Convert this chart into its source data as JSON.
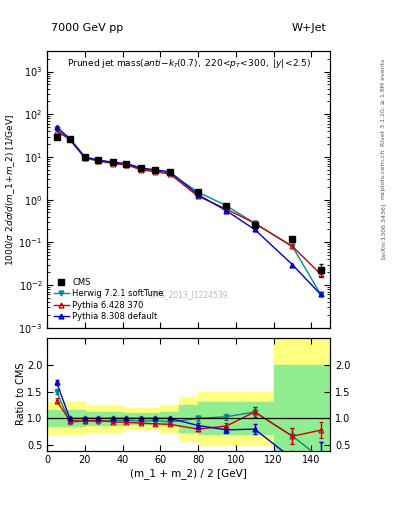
{
  "header_left": "7000 GeV pp",
  "header_right": "W+Jet",
  "ylabel_main": "1000/σ 2dσ/d(m_1 + m_2) [1/GeV]",
  "ylabel_ratio": "Ratio to CMS",
  "xlabel": "(m_1 + m_2) / 2 [GeV]",
  "watermark": "CMS_2013_I1224539",
  "rivet_text": "Rivet 3.1.10, ≥ 1.8M events",
  "arxiv_text": "[arXiv:1306.3436]",
  "mcplots_text": "mcplots.cern.ch",
  "x_cms": [
    5,
    12,
    20,
    27,
    35,
    42,
    50,
    57,
    65,
    80,
    95,
    110,
    130,
    145
  ],
  "y_cms": [
    30,
    27,
    10,
    8.5,
    7.5,
    7.0,
    5.5,
    5.0,
    4.5,
    1.5,
    0.7,
    0.25,
    0.12,
    0.023
  ],
  "y_cms_err": [
    3,
    2.5,
    1,
    0.8,
    0.7,
    0.6,
    0.5,
    0.45,
    0.4,
    0.15,
    0.07,
    0.03,
    0.015,
    0.008
  ],
  "x_herwig": [
    5,
    12,
    20,
    27,
    35,
    42,
    50,
    57,
    65,
    80,
    95,
    110,
    130,
    145
  ],
  "y_herwig": [
    45,
    25,
    9.5,
    8.0,
    7.2,
    6.8,
    5.2,
    4.8,
    4.2,
    1.5,
    0.72,
    0.28,
    0.08,
    0.006
  ],
  "x_py6": [
    5,
    12,
    20,
    27,
    35,
    42,
    50,
    57,
    65,
    80,
    95,
    110,
    130,
    145
  ],
  "y_py6": [
    40,
    26,
    9.5,
    8.2,
    7.0,
    6.5,
    5.0,
    4.5,
    4.0,
    1.2,
    0.6,
    0.28,
    0.08,
    0.018
  ],
  "x_py8": [
    5,
    12,
    20,
    27,
    35,
    42,
    50,
    57,
    65,
    80,
    95,
    110,
    130,
    145
  ],
  "y_py8": [
    50,
    27,
    10,
    8.5,
    7.5,
    7.0,
    5.5,
    5.0,
    4.5,
    1.3,
    0.55,
    0.2,
    0.03,
    0.006
  ],
  "ratio_herwig": [
    1.5,
    0.93,
    0.95,
    0.94,
    0.96,
    0.97,
    0.945,
    0.96,
    0.933,
    1.0,
    1.03,
    1.12,
    0.67,
    0.26
  ],
  "ratio_py6": [
    1.33,
    0.96,
    0.95,
    0.965,
    0.933,
    0.929,
    0.909,
    0.9,
    0.889,
    0.8,
    0.857,
    1.12,
    0.667,
    0.78
  ],
  "ratio_py8": [
    1.67,
    1.0,
    1.0,
    1.0,
    1.0,
    1.0,
    1.0,
    1.0,
    1.0,
    0.867,
    0.786,
    0.8,
    0.25,
    0.26
  ],
  "ratio_herwig_err": [
    0.05,
    0.03,
    0.03,
    0.03,
    0.02,
    0.02,
    0.02,
    0.02,
    0.02,
    0.04,
    0.06,
    0.1,
    0.15,
    0.3
  ],
  "ratio_py6_err": [
    0.05,
    0.03,
    0.03,
    0.02,
    0.02,
    0.02,
    0.02,
    0.02,
    0.02,
    0.04,
    0.06,
    0.1,
    0.15,
    0.15
  ],
  "ratio_py8_err": [
    0.05,
    0.03,
    0.03,
    0.02,
    0.02,
    0.02,
    0.02,
    0.02,
    0.02,
    0.04,
    0.06,
    0.1,
    0.15,
    0.3
  ],
  "band_x": [
    0,
    10,
    20,
    30,
    40,
    50,
    60,
    70,
    80,
    90,
    100,
    110,
    120,
    130,
    140,
    150
  ],
  "band_green_lo": [
    0.85,
    0.85,
    0.88,
    0.88,
    0.9,
    0.9,
    0.88,
    0.75,
    0.7,
    0.7,
    0.7,
    0.7,
    0.4,
    0.4,
    0.4,
    0.4
  ],
  "band_green_hi": [
    1.15,
    1.15,
    1.12,
    1.12,
    1.1,
    1.1,
    1.12,
    1.25,
    1.3,
    1.3,
    1.3,
    1.3,
    2.0,
    2.0,
    2.0,
    2.0
  ],
  "band_yellow_lo": [
    0.7,
    0.7,
    0.75,
    0.75,
    0.8,
    0.8,
    0.75,
    0.6,
    0.5,
    0.5,
    0.5,
    0.5,
    0.3,
    0.3,
    0.3,
    0.3
  ],
  "band_yellow_hi": [
    1.3,
    1.3,
    1.25,
    1.25,
    1.2,
    1.2,
    1.25,
    1.4,
    1.5,
    1.5,
    1.5,
    1.5,
    2.5,
    2.5,
    2.5,
    2.5
  ],
  "color_cms": "#000000",
  "color_herwig": "#008B8B",
  "color_py6": "#cc0000",
  "color_py8": "#0000cc",
  "color_green": "#90ee90",
  "color_yellow": "#ffff80",
  "xlim": [
    0,
    150
  ],
  "ylim_main": [
    0.001,
    3000
  ],
  "ylim_ratio": [
    0.4,
    2.5
  ],
  "ratio_yticks": [
    0.5,
    1.0,
    1.5,
    2.0
  ]
}
